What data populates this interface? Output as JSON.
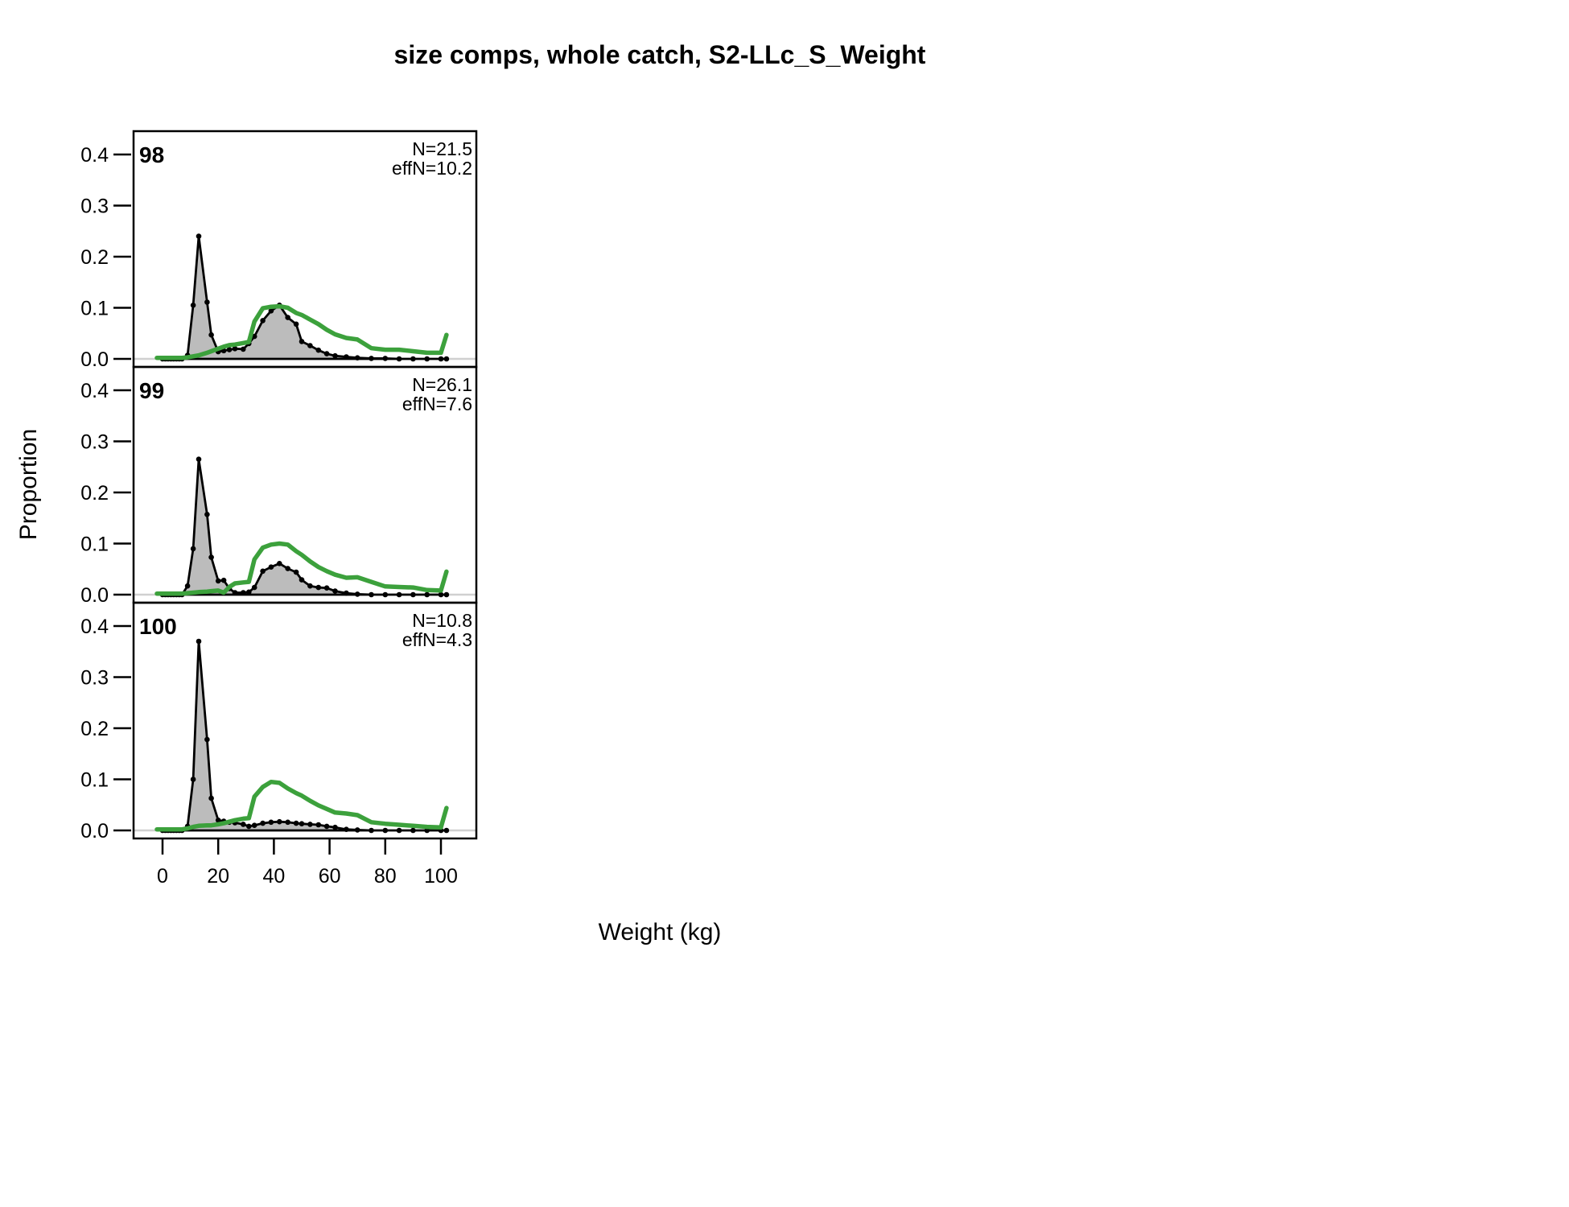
{
  "title": "size comps, whole catch, S2-LLc_S_Weight",
  "xlabel": "Weight (kg)",
  "ylabel": "Proportion",
  "chart_data": {
    "type": "area",
    "description": "Three stacked panels of weight composition: observed proportions (grey filled polygon with black points) and expected proportions (green line) by year",
    "xlabel": "Weight (kg)",
    "ylabel": "Proportion",
    "x_ticks": [
      0,
      20,
      40,
      60,
      80,
      100
    ],
    "y_ticks": [
      "0.0",
      "0.1",
      "0.2",
      "0.3",
      "0.4"
    ],
    "xlim": [
      -10.4,
      112.7
    ],
    "ylim": [
      -0.016,
      0.447
    ],
    "grid": false,
    "legend": "none",
    "colors": {
      "observed_fill": "#bcbcbc",
      "observed_line": "#000000",
      "expected_line": "#3ca13c",
      "zero_line": "#d0d0d0"
    },
    "x": [
      0,
      1,
      2,
      3,
      4,
      5,
      6,
      7,
      9,
      11,
      13,
      16,
      17.5,
      20,
      22,
      24,
      26,
      29,
      31,
      33,
      36,
      39,
      42,
      45,
      48,
      50,
      53,
      56,
      59,
      62,
      66,
      70,
      75,
      80,
      85,
      90,
      95,
      100,
      102
    ],
    "panels": [
      {
        "label": "98",
        "n_label": "N=21.5",
        "effn_label": "effN=10.2",
        "observed": [
          0,
          0,
          0,
          0,
          0,
          0,
          0,
          0,
          0.007,
          0.105,
          0.24,
          0.111,
          0.047,
          0.014,
          0.016,
          0.018,
          0.02,
          0.019,
          0.03,
          0.044,
          0.075,
          0.094,
          0.105,
          0.081,
          0.068,
          0.034,
          0.026,
          0.017,
          0.01,
          0.006,
          0.004,
          0.002,
          0.001,
          0.001,
          0,
          0,
          0,
          0,
          0
        ],
        "expected": [
          0.002,
          0.002,
          0.002,
          0.002,
          0.002,
          0.002,
          0.002,
          0.002,
          0.003,
          0.005,
          0.007,
          0.012,
          0.015,
          0.02,
          0.024,
          0.027,
          0.028,
          0.031,
          0.033,
          0.073,
          0.099,
          0.102,
          0.103,
          0.1,
          0.09,
          0.086,
          0.077,
          0.068,
          0.057,
          0.048,
          0.041,
          0.038,
          0.021,
          0.018,
          0.018,
          0.015,
          0.012,
          0.012,
          0.047
        ]
      },
      {
        "label": "99",
        "n_label": "N=26.1",
        "effn_label": "effN=7.6",
        "observed": [
          0,
          0,
          0,
          0,
          0,
          0,
          0,
          0,
          0.017,
          0.09,
          0.265,
          0.157,
          0.073,
          0.027,
          0.028,
          0.012,
          0.004,
          0.004,
          0.005,
          0.014,
          0.046,
          0.054,
          0.061,
          0.051,
          0.044,
          0.029,
          0.017,
          0.014,
          0.013,
          0.007,
          0.003,
          0.001,
          0,
          0,
          0,
          0,
          0,
          0,
          0
        ],
        "expected": [
          0.002,
          0.002,
          0.002,
          0.002,
          0.002,
          0.002,
          0.002,
          0.002,
          0.003,
          0.004,
          0.005,
          0.006,
          0.007,
          0.008,
          0.004,
          0.015,
          0.022,
          0.024,
          0.025,
          0.069,
          0.092,
          0.098,
          0.1,
          0.098,
          0.085,
          0.078,
          0.065,
          0.054,
          0.046,
          0.039,
          0.033,
          0.034,
          0.025,
          0.016,
          0.015,
          0.014,
          0.009,
          0.008,
          0.045
        ]
      },
      {
        "label": "100",
        "n_label": "N=10.8",
        "effn_label": "effN=4.3",
        "observed": [
          0,
          0,
          0,
          0,
          0,
          0,
          0,
          0,
          0.008,
          0.1,
          0.37,
          0.178,
          0.063,
          0.02,
          0.018,
          0.016,
          0.015,
          0.012,
          0.008,
          0.01,
          0.014,
          0.016,
          0.017,
          0.016,
          0.014,
          0.013,
          0.012,
          0.011,
          0.008,
          0.006,
          0.002,
          0.001,
          0,
          0,
          0,
          0,
          0,
          0,
          0
        ],
        "expected": [
          0.002,
          0.002,
          0.002,
          0.002,
          0.002,
          0.002,
          0.002,
          0.002,
          0.004,
          0.007,
          0.009,
          0.01,
          0.01,
          0.012,
          0.014,
          0.017,
          0.02,
          0.023,
          0.024,
          0.066,
          0.085,
          0.095,
          0.093,
          0.082,
          0.073,
          0.068,
          0.058,
          0.049,
          0.042,
          0.035,
          0.033,
          0.03,
          0.016,
          0.013,
          0.011,
          0.009,
          0.007,
          0.006,
          0.044
        ]
      }
    ]
  }
}
